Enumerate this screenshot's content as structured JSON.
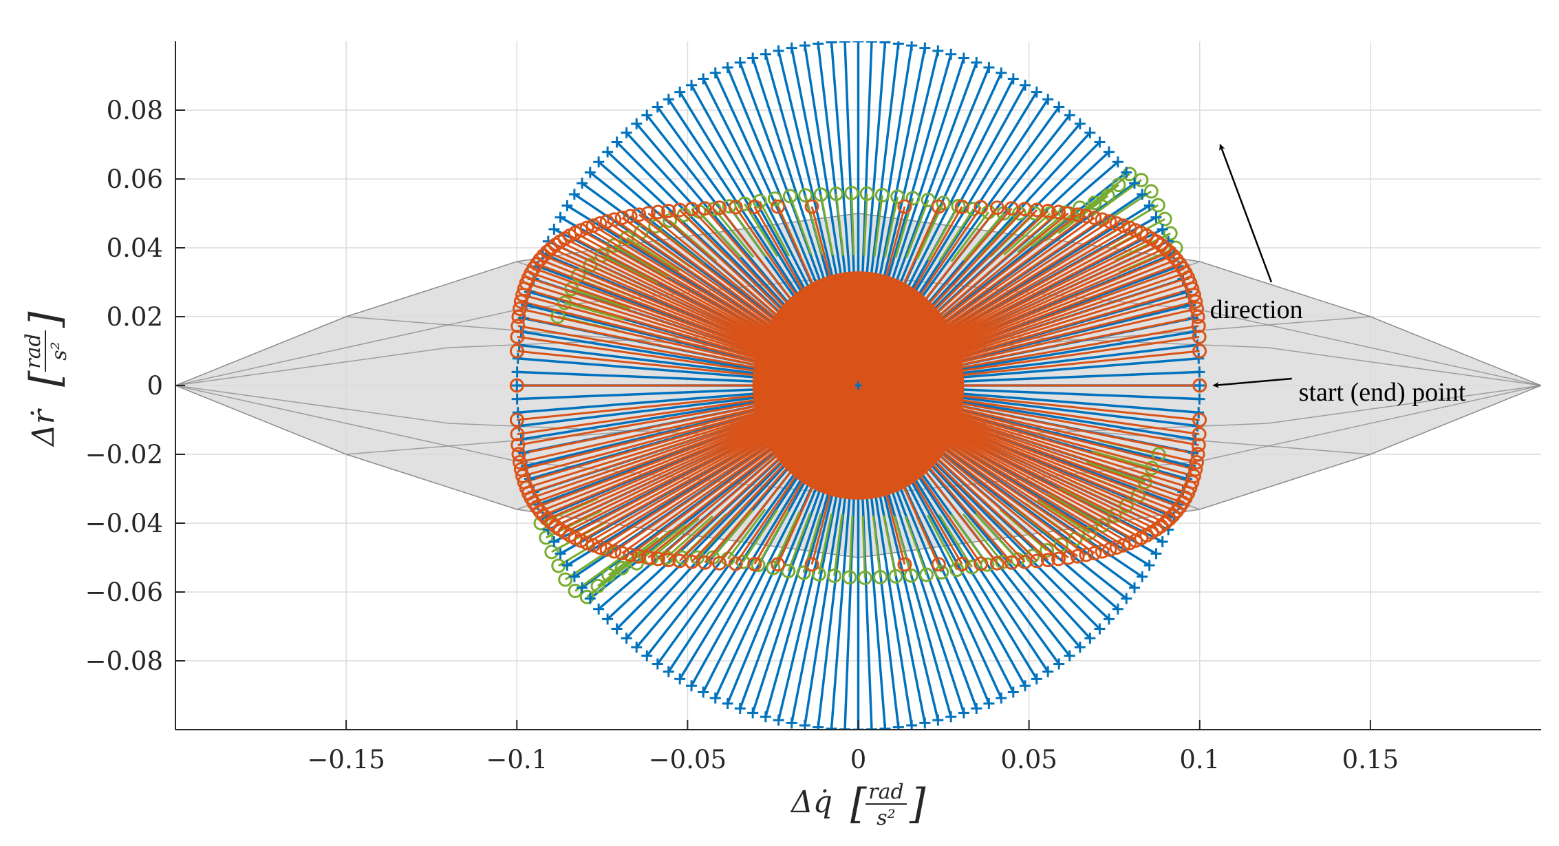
{
  "chart_data": {
    "type": "scatter",
    "title": "",
    "xlabel": {
      "prefix": "Δq̇",
      "frac_num": "rad",
      "frac_den": "s²"
    },
    "ylabel": {
      "prefix": "Δṙ",
      "frac_num": "rad",
      "frac_den": "s²"
    },
    "xlim": [
      -0.2,
      0.2
    ],
    "ylim": [
      -0.1,
      0.1
    ],
    "xticks": [
      -0.15,
      -0.1,
      -0.05,
      0,
      0.05,
      0.1,
      0.15
    ],
    "xtick_labels": [
      "−0.15",
      "−0.1",
      "−0.05",
      "0",
      "0.05",
      "0.1",
      "0.15"
    ],
    "yticks": [
      -0.08,
      -0.06,
      -0.04,
      -0.02,
      0,
      0.02,
      0.04,
      0.06,
      0.08
    ],
    "ytick_labels": [
      "−0.08",
      "−0.06",
      "−0.04",
      "−0.02",
      "0",
      "0.02",
      "0.04",
      "0.06",
      "0.08"
    ],
    "grid": true,
    "colors": {
      "blue": "#0072BD",
      "orange": "#D95319",
      "green": "#77AC30",
      "gray_fill": "#d9d9d9",
      "gray_edge": "#8c8c8c",
      "grid": "#dcdcdc"
    },
    "gray_region": {
      "outline": [
        [
          -0.2,
          0
        ],
        [
          -0.15,
          0.02
        ],
        [
          -0.1,
          0.036
        ],
        [
          -0.06,
          0.042
        ],
        [
          0,
          0.05
        ],
        [
          0.06,
          0.042
        ],
        [
          0.1,
          0.036
        ],
        [
          0.15,
          0.02
        ],
        [
          0.2,
          0
        ],
        [
          0.15,
          -0.02
        ],
        [
          0.1,
          -0.036
        ],
        [
          0.06,
          -0.042
        ],
        [
          0,
          -0.05
        ],
        [
          -0.06,
          -0.042
        ],
        [
          -0.1,
          -0.036
        ],
        [
          -0.15,
          -0.02
        ],
        [
          -0.2,
          0
        ]
      ],
      "inner_lines": [
        [
          [
            -0.2,
            0
          ],
          [
            -0.1,
            0.022
          ],
          [
            0,
            0.032
          ],
          [
            0.1,
            0.022
          ],
          [
            0.2,
            0
          ]
        ],
        [
          [
            -0.2,
            0
          ],
          [
            -0.1,
            -0.022
          ],
          [
            0,
            -0.032
          ],
          [
            0.1,
            -0.022
          ],
          [
            0.2,
            0
          ]
        ],
        [
          [
            -0.2,
            0
          ],
          [
            -0.12,
            0.011
          ],
          [
            0,
            0.016
          ],
          [
            0.12,
            0.011
          ],
          [
            0.2,
            0
          ]
        ],
        [
          [
            -0.2,
            0
          ],
          [
            -0.12,
            -0.011
          ],
          [
            0,
            -0.016
          ],
          [
            0.12,
            -0.011
          ],
          [
            0.2,
            0
          ]
        ],
        [
          [
            -0.1,
            0.036
          ],
          [
            0.1,
            -0.036
          ]
        ],
        [
          [
            -0.1,
            -0.036
          ],
          [
            0.1,
            0.036
          ]
        ],
        [
          [
            -0.15,
            0.02
          ],
          [
            0,
            0.008
          ],
          [
            0.15,
            0.02
          ]
        ],
        [
          [
            -0.15,
            -0.02
          ],
          [
            0,
            -0.008
          ],
          [
            0.15,
            -0.02
          ]
        ]
      ]
    },
    "series": [
      {
        "marker": "plus",
        "color": "blue",
        "shape": "circle",
        "radius_x": 0.1,
        "radius_y": 0.1,
        "count": 160,
        "spokes_to_origin": true
      },
      {
        "marker": "circle",
        "color": "green",
        "arcs": [
          [
            [
              -0.088,
              0.02
            ],
            [
              -0.082,
              0.032
            ],
            [
              -0.07,
              0.042
            ],
            [
              -0.05,
              0.05
            ],
            [
              -0.02,
              0.055
            ],
            [
              0,
              0.056
            ],
            [
              0.02,
              0.054
            ],
            [
              0.04,
              0.05
            ],
            [
              0.06,
              0.05
            ],
            [
              0.072,
              0.054
            ],
            [
              0.08,
              0.062
            ],
            [
              0.085,
              0.058
            ],
            [
              0.09,
              0.048
            ],
            [
              0.093,
              0.04
            ]
          ],
          [
            [
              0.088,
              -0.02
            ],
            [
              0.082,
              -0.032
            ],
            [
              0.07,
              -0.042
            ],
            [
              0.05,
              -0.05
            ],
            [
              0.02,
              -0.055
            ],
            [
              0,
              -0.056
            ],
            [
              -0.02,
              -0.054
            ],
            [
              -0.04,
              -0.05
            ],
            [
              -0.06,
              -0.05
            ],
            [
              -0.072,
              -0.054
            ],
            [
              -0.08,
              -0.062
            ],
            [
              -0.085,
              -0.058
            ],
            [
              -0.09,
              -0.048
            ],
            [
              -0.093,
              -0.04
            ]
          ]
        ],
        "points_per_arc": 48
      },
      {
        "marker": "circle",
        "color": "orange",
        "shape": "superellipse",
        "radius_x": 0.1,
        "radius_y": 0.052,
        "exponent": 4,
        "count": 170,
        "core_radius": 0.031,
        "spokes_to_origin": true
      }
    ],
    "annotations": [
      {
        "text": "direction",
        "x": 0.103,
        "y": 0.022,
        "arrow_from": [
          0.121,
          0.03
        ],
        "arrow_to": [
          0.106,
          0.07
        ]
      },
      {
        "text": "start (end) point",
        "x": 0.129,
        "y": -0.002,
        "arrow_from": [
          0.127,
          0.002
        ],
        "arrow_to": [
          0.104,
          0
        ]
      }
    ]
  }
}
